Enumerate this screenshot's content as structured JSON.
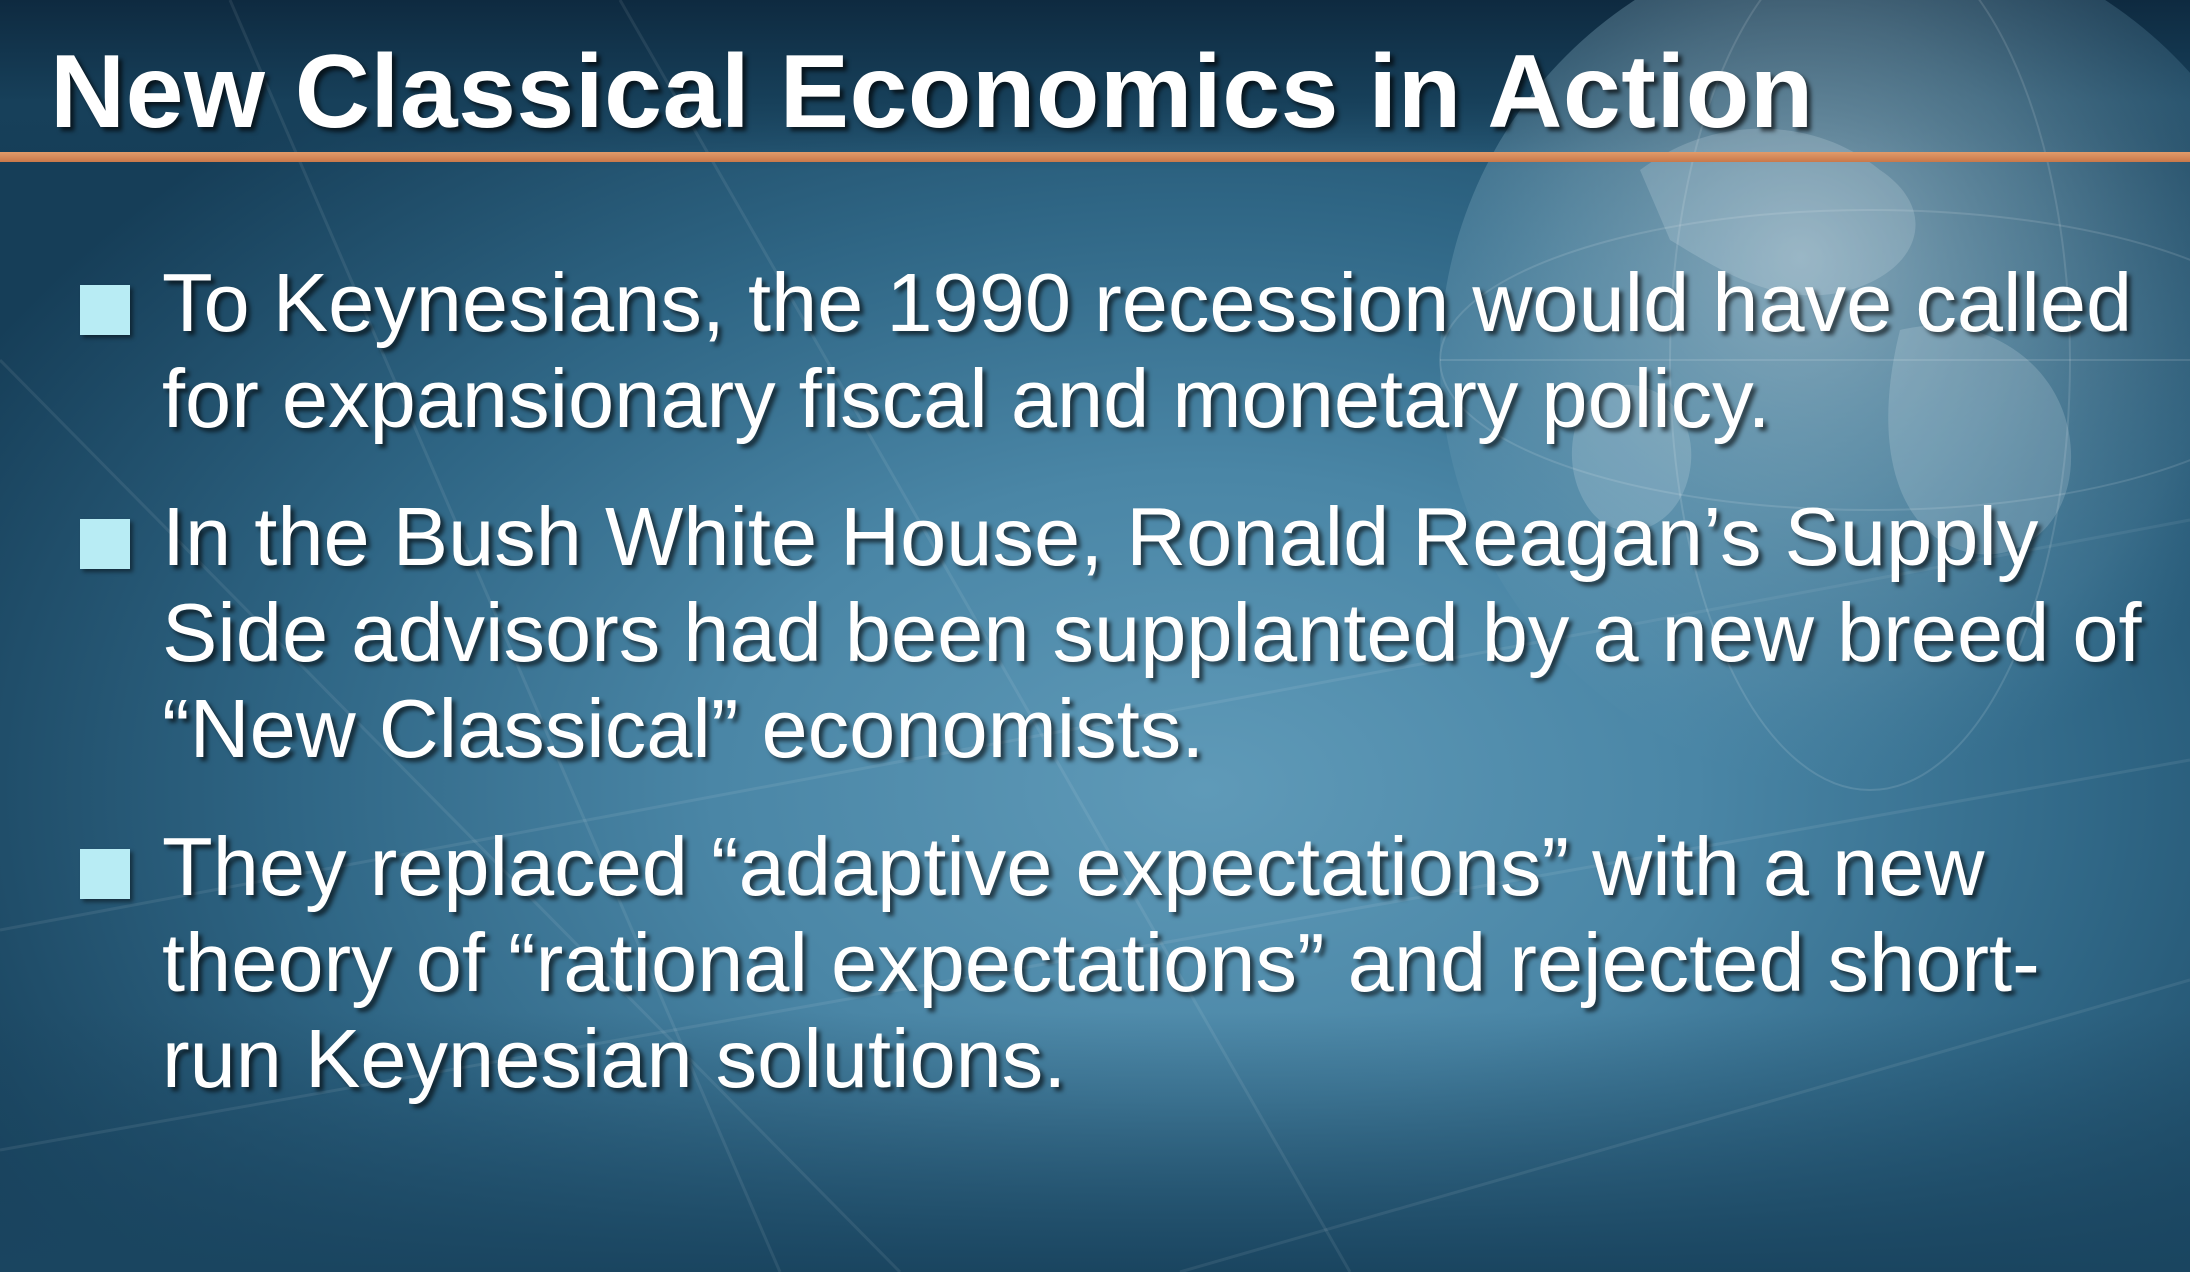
{
  "slide": {
    "title": "New Classical Economics in Action",
    "bullets": [
      {
        "text": "To Keynesians, the 1990 recession would have called for expansionary fiscal and monetary policy."
      },
      {
        "text": "In the Bush White House, Ronald Reagan’s Supply Side advisors had been supplanted by a new breed of “New Classical” economists."
      },
      {
        "text": "They replaced “adaptive expectations” with a new theory of “rational expectations” and rejected short-run Keynesian solutions."
      }
    ]
  },
  "colors": {
    "background": "#4a86a6",
    "title_rule": "#d98a58",
    "bullet_marker": "#b8ecf4",
    "text": "#ffffff"
  },
  "icons": {
    "bullet": "square-bullet-icon",
    "background_graphic": "globe-icon"
  }
}
